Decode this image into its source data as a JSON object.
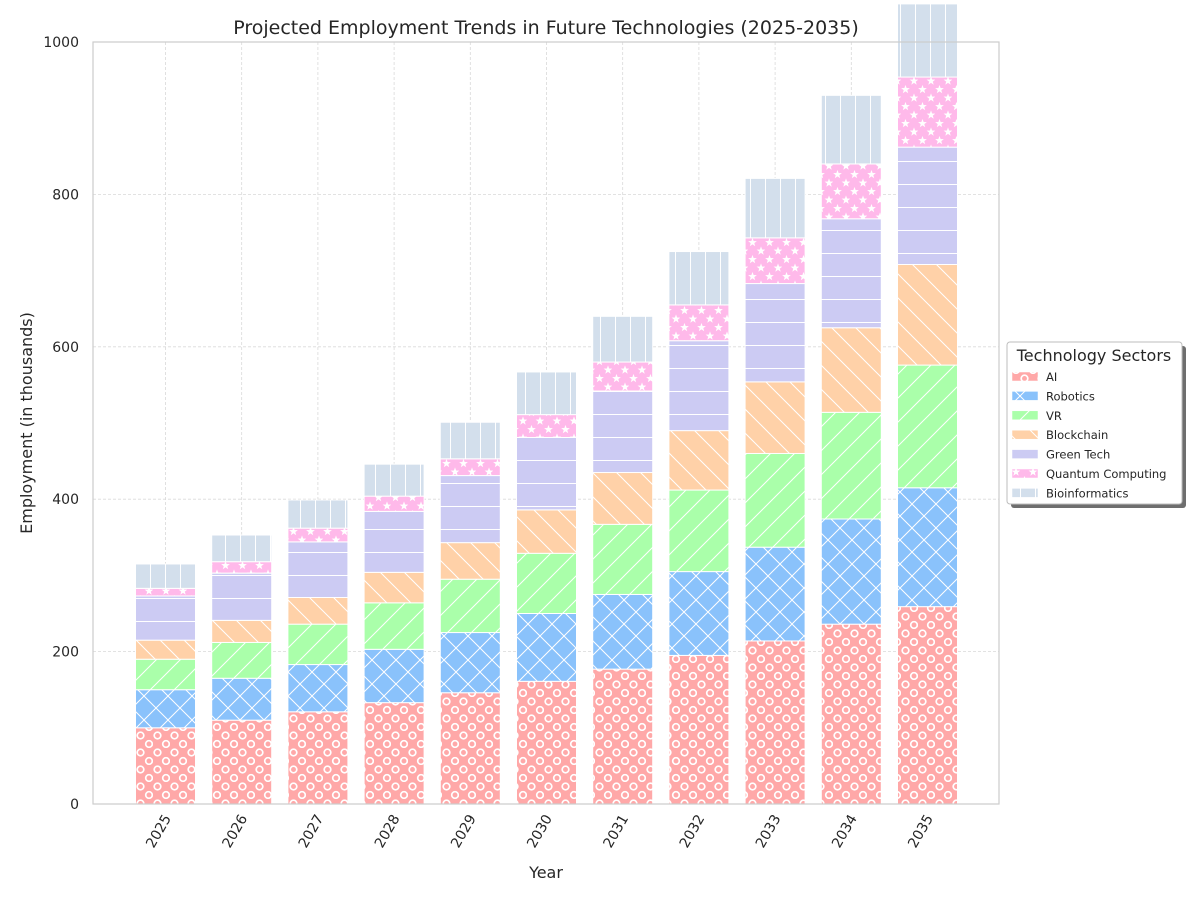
{
  "chart_data": {
    "type": "bar",
    "stacked": true,
    "title": "Projected Employment Trends in Future Technologies (2025-2035)",
    "xlabel": "Year",
    "ylabel": "Employment (in thousands)",
    "ylim": [
      0,
      1000
    ],
    "yticks": [
      0,
      200,
      400,
      600,
      800,
      1000
    ],
    "grid": true,
    "legend_title": "Technology Sectors",
    "legend_position": "right",
    "categories": [
      "2025",
      "2026",
      "2027",
      "2028",
      "2029",
      "2030",
      "2031",
      "2032",
      "2033",
      "2034",
      "2035"
    ],
    "series": [
      {
        "name": "AI",
        "color": "#ffa8a8",
        "hatch": "circles",
        "values": [
          100,
          110,
          121,
          133,
          146,
          161,
          177,
          195,
          214,
          236,
          259
        ]
      },
      {
        "name": "Robotics",
        "color": "#8ac2fb",
        "hatch": "cross",
        "values": [
          50,
          55,
          62,
          70,
          79,
          89,
          98,
          110,
          123,
          138,
          156
        ]
      },
      {
        "name": "VR",
        "color": "#aaffaa",
        "hatch": "diagonal",
        "values": [
          40,
          47,
          53,
          61,
          70,
          79,
          92,
          107,
          123,
          140,
          161
        ]
      },
      {
        "name": "Blockchain",
        "color": "#ffd1a8",
        "hatch": "back-diagonal",
        "values": [
          25,
          29,
          35,
          40,
          48,
          57,
          68,
          78,
          94,
          111,
          132
        ]
      },
      {
        "name": "Green Tech",
        "color": "#cccbf3",
        "hatch": "horizontal",
        "values": [
          58,
          62,
          73,
          80,
          88,
          95,
          107,
          118,
          129,
          143,
          154
        ]
      },
      {
        "name": "Quantum Computing",
        "color": "#ffb9ea",
        "hatch": "stars",
        "values": [
          10,
          15,
          18,
          20,
          22,
          30,
          38,
          47,
          60,
          72,
          92
        ]
      },
      {
        "name": "Bioinformatics",
        "color": "#d3dfec",
        "hatch": "vertical",
        "values": [
          32,
          35,
          37,
          42,
          48,
          56,
          60,
          70,
          78,
          90,
          96
        ]
      }
    ]
  }
}
